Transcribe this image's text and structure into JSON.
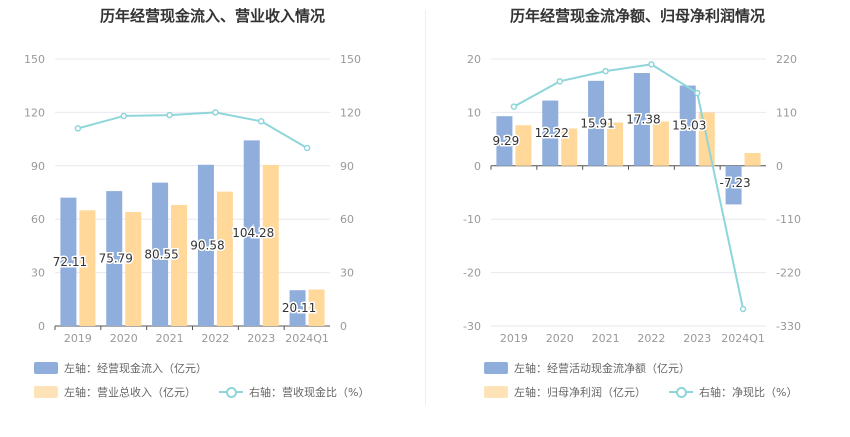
{
  "colors": {
    "inflow_bar": "#8FAEDC",
    "revenue_bar": "#FFD89A",
    "ratio_line": "#8ED6DA"
  },
  "chart_data": [
    {
      "type": "bar",
      "title": "历年经营现金流入、营业收入情况",
      "categories": [
        "2019",
        "2020",
        "2021",
        "2022",
        "2023",
        "2024Q1"
      ],
      "y_left": {
        "ticks": [
          "0",
          "30",
          "60",
          "90",
          "120",
          "150"
        ],
        "ylim": [
          0,
          150
        ]
      },
      "y_right": {
        "ticks": [
          "0",
          "30",
          "60",
          "90",
          "120",
          "150"
        ],
        "ylim": [
          0,
          150
        ]
      },
      "series": [
        {
          "name": "左轴：经营现金流入（亿元）",
          "axis": "left",
          "type": "bar",
          "values": [
            72.11,
            75.79,
            80.55,
            90.58,
            104.28,
            20.11
          ],
          "labels": [
            "72.11",
            "75.79",
            "80.55",
            "90.58",
            "104.28",
            "20.11"
          ]
        },
        {
          "name": "左轴：营业总收入（亿元）",
          "axis": "left",
          "type": "bar",
          "values": [
            65,
            64,
            68,
            75.5,
            90.5,
            20.5
          ]
        },
        {
          "name": "右轴：营收现金比（%）",
          "axis": "right",
          "type": "line",
          "values": [
            111,
            118,
            118.5,
            120,
            115,
            100
          ]
        }
      ]
    },
    {
      "type": "bar",
      "title": "历年经营现金流净额、归母净利润情况",
      "categories": [
        "2019",
        "2020",
        "2021",
        "2022",
        "2023",
        "2024Q1"
      ],
      "y_left": {
        "ticks": [
          "-30",
          "-20",
          "-10",
          "0",
          "10",
          "20"
        ],
        "ylim": [
          -30,
          20
        ]
      },
      "y_right": {
        "ticks": [
          "-330",
          "-220",
          "-110",
          "0",
          "110",
          "220"
        ],
        "ylim": [
          -330,
          220
        ]
      },
      "series": [
        {
          "name": "左轴：经营活动现金流净额（亿元）",
          "axis": "left",
          "type": "bar",
          "values": [
            9.29,
            12.22,
            15.91,
            17.38,
            15.03,
            -7.23
          ],
          "labels": [
            "9.29",
            "12.22",
            "15.91",
            "17.38",
            "15.03",
            "-7.23"
          ]
        },
        {
          "name": "左轴：归母净利润（亿元）",
          "axis": "left",
          "type": "bar",
          "values": [
            7.6,
            7.0,
            8.1,
            8.3,
            10.0,
            2.4
          ]
        },
        {
          "name": "右轴：净现比（%）",
          "axis": "right",
          "type": "line",
          "values": [
            122,
            174,
            195,
            209,
            150,
            -295
          ]
        }
      ]
    }
  ]
}
